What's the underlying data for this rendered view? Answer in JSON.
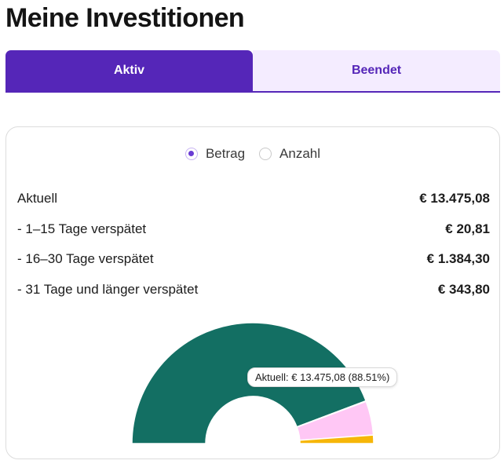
{
  "page": {
    "title": "Meine Investitionen"
  },
  "tabs": [
    {
      "label": "Aktiv",
      "active": true
    },
    {
      "label": "Beendet",
      "active": false
    }
  ],
  "toggle": {
    "options": [
      {
        "label": "Betrag",
        "selected": true
      },
      {
        "label": "Anzahl",
        "selected": false
      }
    ]
  },
  "summary": {
    "rows": [
      {
        "label": "Aktuell",
        "value": "€ 13.475,08"
      },
      {
        "label": "- 1–15 Tage verspätet",
        "value": "€ 20,81"
      },
      {
        "label": "- 16–30 Tage verspätet",
        "value": "€ 1.384,30"
      },
      {
        "label": "- 31 Tage und länger verspätet",
        "value": "€ 343,80"
      }
    ]
  },
  "chart_data": {
    "type": "pie",
    "variant": "semi-donut",
    "series": [
      {
        "label": "Aktuell",
        "value": 13475.08,
        "color": "#136f63"
      },
      {
        "label": "1–15 Tage verspätet",
        "value": 20.81,
        "color": "#e8e8e8"
      },
      {
        "label": "16–30 Tage verspätet",
        "value": 1384.3,
        "color": "#ffc7f5"
      },
      {
        "label": "31 Tage und länger verspätet",
        "value": 343.8,
        "color": "#f6b609"
      }
    ],
    "tooltip": "Aktuell: € 13.475,08 (88.51%)"
  },
  "colors": {
    "accent": "#5526b8",
    "tab_inactive_bg": "#f4ecff"
  }
}
